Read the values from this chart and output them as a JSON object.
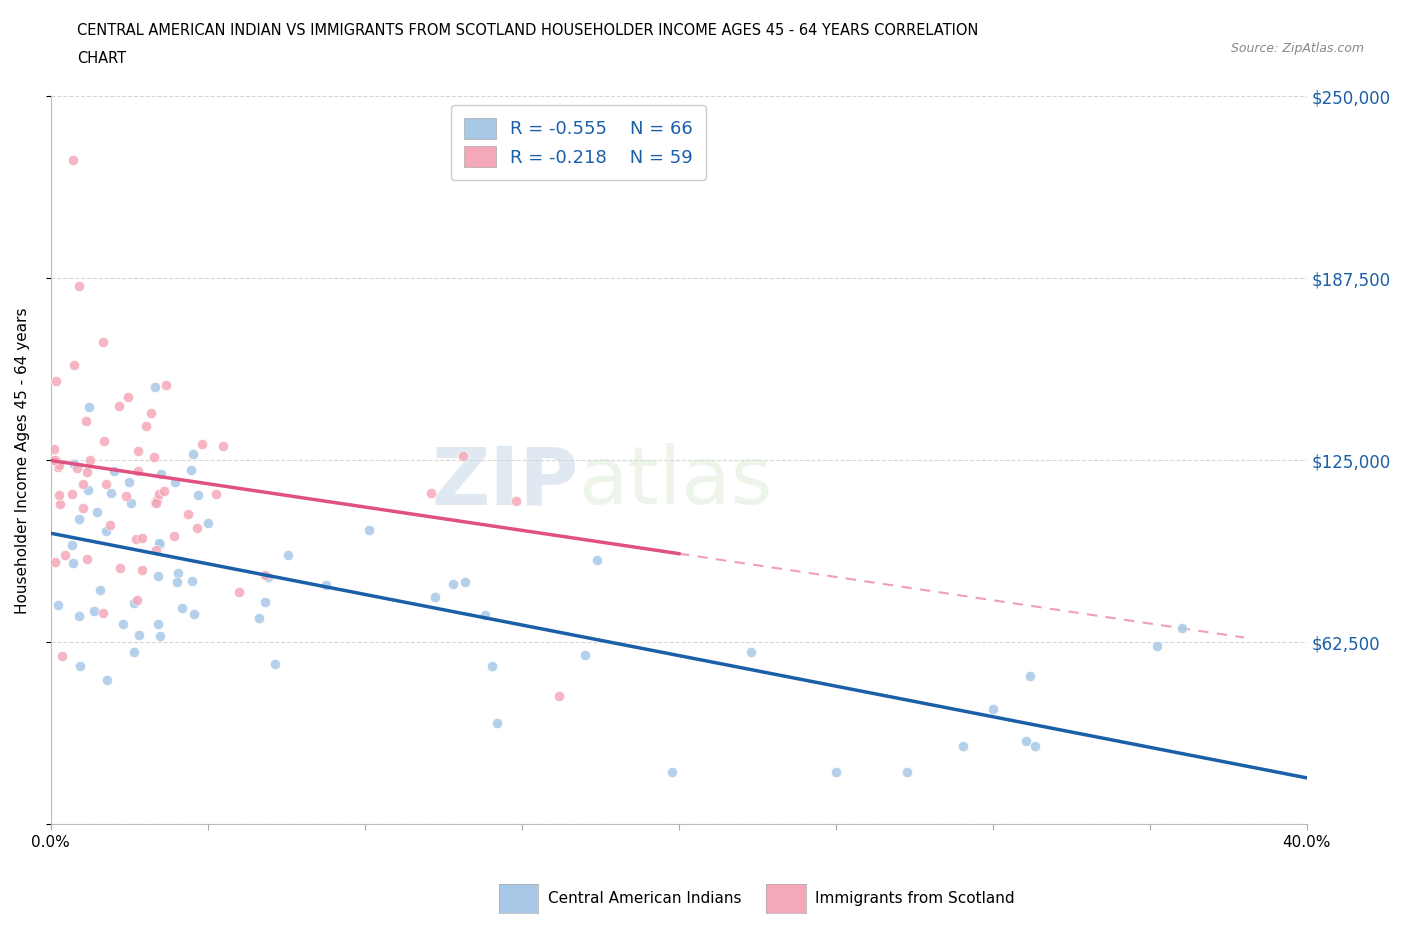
{
  "title_line1": "CENTRAL AMERICAN INDIAN VS IMMIGRANTS FROM SCOTLAND HOUSEHOLDER INCOME AGES 45 - 64 YEARS CORRELATION",
  "title_line2": "CHART",
  "source": "Source: ZipAtlas.com",
  "ylabel": "Householder Income Ages 45 - 64 years",
  "xlim": [
    0.0,
    0.4
  ],
  "ylim": [
    0,
    250000
  ],
  "yticks": [
    0,
    62500,
    125000,
    187500,
    250000
  ],
  "ytick_labels": [
    "",
    "$62,500",
    "$125,000",
    "$187,500",
    "$250,000"
  ],
  "xticks": [
    0.0,
    0.05,
    0.1,
    0.15,
    0.2,
    0.25,
    0.3,
    0.35,
    0.4
  ],
  "xtick_labels": [
    "0.0%",
    "",
    "",
    "",
    "",
    "",
    "",
    "",
    "40.0%"
  ],
  "blue_color": "#a8c8e8",
  "pink_color": "#f4a8b8",
  "blue_line_color": "#1a5fa8",
  "pink_line_color": "#e05080",
  "pink_dash_color": "#f0a0b0",
  "R_blue": -0.555,
  "N_blue": 66,
  "R_pink": -0.218,
  "N_pink": 59,
  "watermark_zip": "ZIP",
  "watermark_atlas": "atlas",
  "legend_label_blue": "Central American Indians",
  "legend_label_pink": "Immigrants from Scotland",
  "blue_intercept": 100000,
  "blue_slope": -210000,
  "pink_intercept": 125000,
  "pink_slope": -160000,
  "seed": 123
}
